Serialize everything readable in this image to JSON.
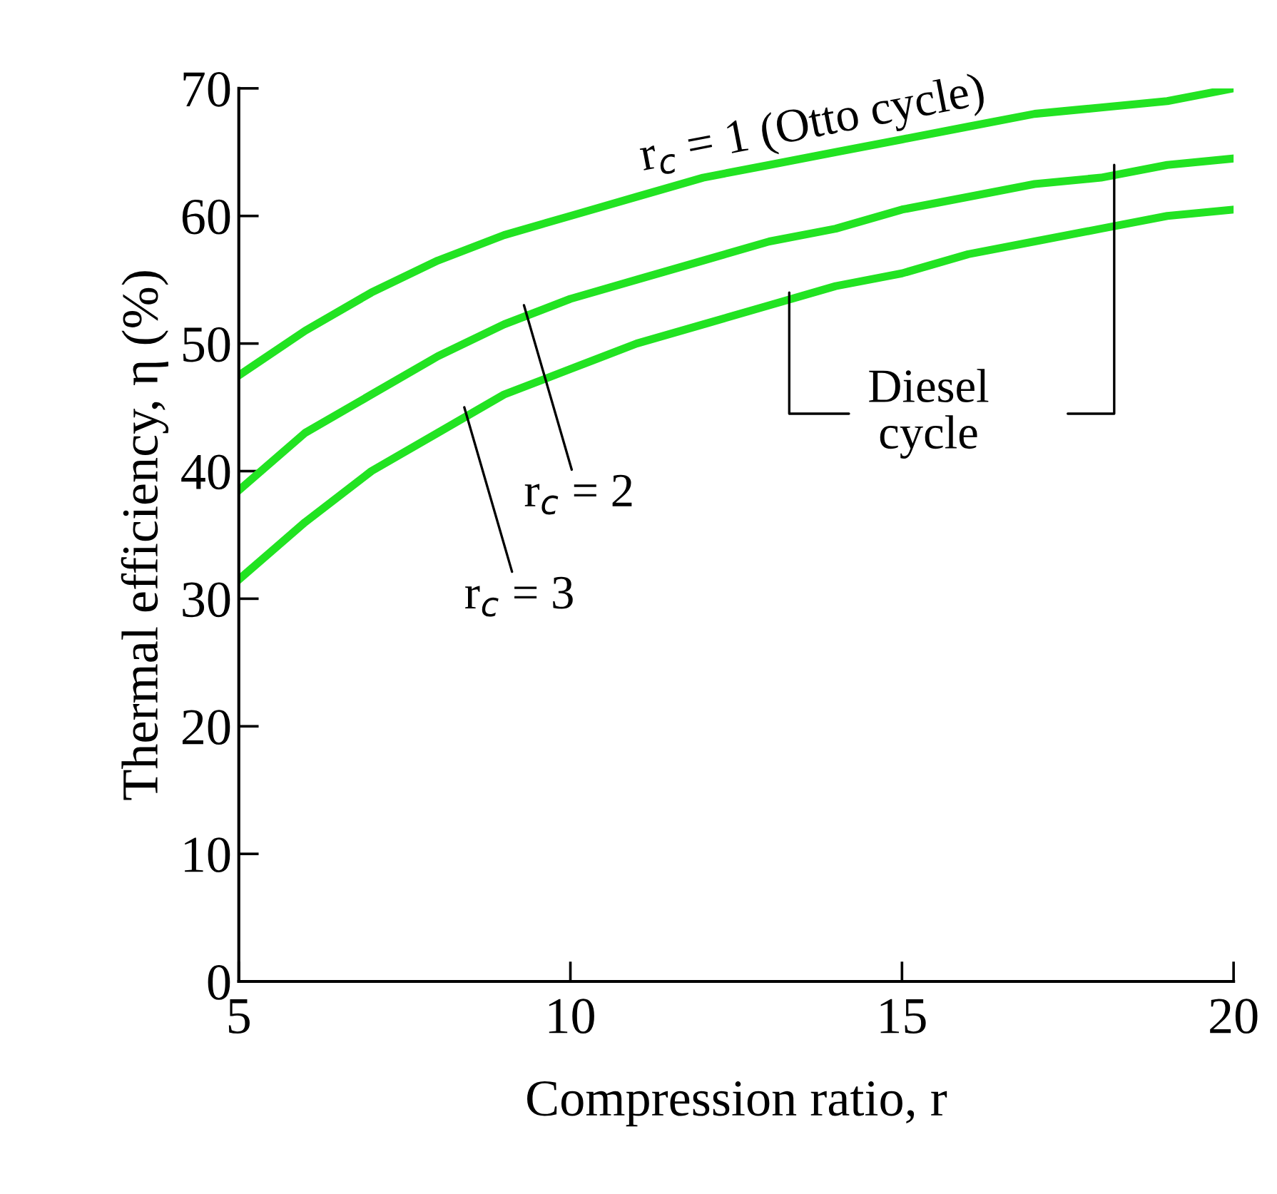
{
  "chart_data": {
    "type": "line",
    "xlabel": "Compression ratio, r",
    "ylabel": "Thermal efficiency, η (%)",
    "x": [
      5,
      6,
      7,
      8,
      9,
      10,
      11,
      12,
      13,
      14,
      15,
      16,
      17,
      18,
      19,
      20
    ],
    "series": [
      {
        "color": "#22e322",
        "values": [
          47.5,
          51,
          54,
          56.5,
          58.5,
          60,
          61.5,
          63,
          64,
          65,
          66,
          67,
          68,
          68.5,
          69,
          70
        ]
      },
      {
        "color": "#22e322",
        "values": [
          38.5,
          43,
          46,
          49,
          51.5,
          53.5,
          55,
          56.5,
          58,
          59,
          60.5,
          61.5,
          62.5,
          63,
          64,
          64.5
        ]
      },
      {
        "color": "#22e322",
        "values": [
          31.5,
          36,
          40,
          43,
          46,
          48,
          50,
          51.5,
          53,
          54.5,
          55.5,
          57,
          58,
          59,
          60,
          60.5
        ]
      }
    ],
    "xlim": [
      5,
      20
    ],
    "xticks": [
      5,
      10,
      15,
      20
    ],
    "ylim": [
      0,
      70
    ],
    "yticks": [
      0,
      10,
      20,
      30,
      40,
      50,
      60,
      70
    ],
    "grid": false,
    "legend": false,
    "marker": "none",
    "line_style": "solid",
    "annotations": [
      {
        "text": "r$_{c}$ = 1 (Otto cycle)",
        "x": 11,
        "y": 61.5
      },
      {
        "text": "r$_{c}$ = 2",
        "x": 9.3,
        "y": 53
      },
      {
        "text": "r$_{c}$ = 3",
        "x": 8.4,
        "y": 45
      },
      {
        "text": "Diesel\ncycle",
        "x": 13.3,
        "y": 54
      }
    ]
  }
}
